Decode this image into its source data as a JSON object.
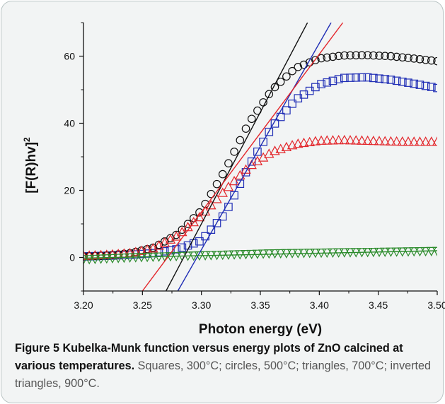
{
  "figure": {
    "caption_label": "Figure 5",
    "caption_title": "Kubelka-Munk function versus energy plots of ZnO calcined at various temperatures.",
    "caption_body": "Squares, 300°C; circles, 500°C; triangles, 700°C; inverted triangles, 900°C."
  },
  "chart_data": {
    "type": "scatter",
    "title": "",
    "xlabel": "Photon energy (eV)",
    "ylabel": "[F(R)hν]²",
    "ylabel_parts": {
      "main": "[F(R)hv]",
      "sup": "2"
    },
    "xlim": [
      3.2,
      3.5
    ],
    "ylim": [
      -10,
      70
    ],
    "xticks": [
      "3.20",
      "3.25",
      "3.30",
      "3.35",
      "3.40",
      "3.45",
      "3.50"
    ],
    "yticks": [
      "0",
      "20",
      "40",
      "60"
    ],
    "grid": false,
    "legend": "none",
    "series": [
      {
        "marker": "square",
        "color": "#1f2db5",
        "x": [
          3.2,
          3.22,
          3.24,
          3.26,
          3.28,
          3.3,
          3.32,
          3.34,
          3.36,
          3.38,
          3.4,
          3.42,
          3.44,
          3.46,
          3.48,
          3.5
        ],
        "y": [
          0.3,
          0.5,
          0.8,
          1.3,
          2.5,
          5.0,
          13.0,
          27.0,
          39.0,
          47.0,
          51.5,
          53.5,
          53.7,
          53.0,
          51.8,
          50.5
        ],
        "fit": {
          "x": [
            3.28,
            3.41
          ],
          "y": [
            -10,
            70
          ]
        }
      },
      {
        "marker": "circle",
        "color": "#111111",
        "x": [
          3.2,
          3.22,
          3.24,
          3.26,
          3.28,
          3.3,
          3.32,
          3.34,
          3.36,
          3.38,
          3.4,
          3.42,
          3.44,
          3.46,
          3.48,
          3.5
        ],
        "y": [
          0.3,
          0.6,
          1.3,
          3.0,
          7.0,
          14.0,
          26.0,
          40.0,
          50.0,
          56.5,
          59.3,
          60.2,
          60.3,
          60.0,
          59.3,
          58.5
        ],
        "fit": {
          "x": [
            3.27,
            3.39
          ],
          "y": [
            -10,
            70
          ]
        }
      },
      {
        "marker": "triangle",
        "color": "#e3262b",
        "x": [
          3.2,
          3.22,
          3.24,
          3.26,
          3.28,
          3.3,
          3.32,
          3.34,
          3.36,
          3.38,
          3.4,
          3.42,
          3.44,
          3.46,
          3.48,
          3.5
        ],
        "y": [
          0.5,
          0.8,
          1.3,
          2.8,
          6.5,
          12.5,
          20.0,
          27.0,
          31.5,
          33.8,
          34.8,
          35.0,
          34.8,
          34.6,
          34.5,
          34.5
        ],
        "fit": {
          "x": [
            3.25,
            3.42
          ],
          "y": [
            -10,
            70
          ]
        }
      },
      {
        "marker": "triangle-down",
        "color": "#2a8a2a",
        "x": [
          3.2,
          3.22,
          3.24,
          3.26,
          3.28,
          3.3,
          3.32,
          3.34,
          3.36,
          3.38,
          3.4,
          3.42,
          3.44,
          3.46,
          3.48,
          3.5
        ],
        "y": [
          -0.6,
          -0.3,
          0.0,
          0.2,
          0.4,
          0.6,
          0.8,
          1.0,
          1.2,
          1.3,
          1.4,
          1.5,
          1.6,
          1.7,
          1.8,
          1.9
        ],
        "fit": {
          "x": [
            3.2,
            3.5
          ],
          "y": [
            -0.2,
            2.0
          ]
        }
      }
    ]
  }
}
